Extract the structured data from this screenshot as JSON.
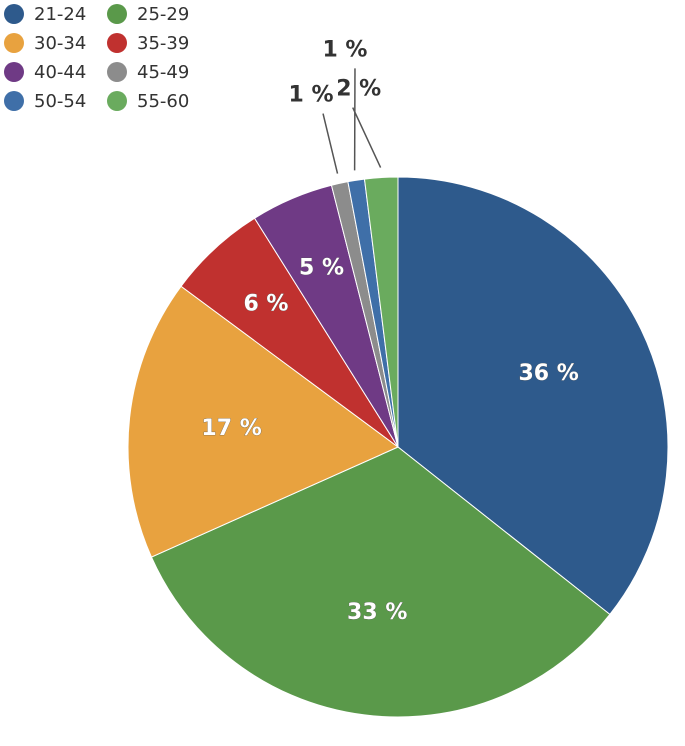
{
  "chart_data": {
    "type": "pie",
    "title": "",
    "legend_position": "top-left",
    "slices": [
      {
        "name": "21-24",
        "value": 36,
        "label": "36 %",
        "color": "#2e5a8c"
      },
      {
        "name": "25-29",
        "value": 33,
        "label": "33 %",
        "color": "#5a994a"
      },
      {
        "name": "30-34",
        "value": 17,
        "label": "17 %",
        "color": "#e8a23f"
      },
      {
        "name": "35-39",
        "value": 6,
        "label": "6 %",
        "color": "#c0312f"
      },
      {
        "name": "40-44",
        "value": 5,
        "label": "5 %",
        "color": "#6f3a85"
      },
      {
        "name": "45-49",
        "value": 1,
        "label": "1 %",
        "color": "#8c8c8c"
      },
      {
        "name": "50-54",
        "value": 1,
        "label": "1 %",
        "color": "#3f6fa8"
      },
      {
        "name": "55-60",
        "value": 2,
        "label": "2 %",
        "color": "#6aab5e"
      }
    ]
  }
}
